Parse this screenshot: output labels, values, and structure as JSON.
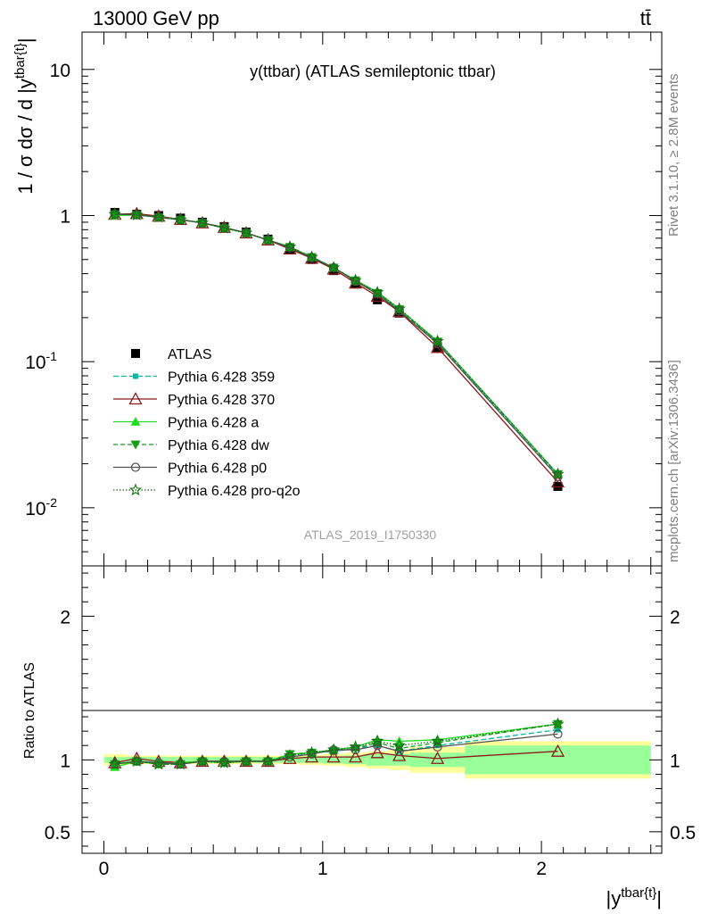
{
  "header": {
    "energy_label": "13000 GeV pp",
    "process_label": "tt̄"
  },
  "side_labels": {
    "rivet": "Rivet 3.1.10, ≥ 2.8M events",
    "mcplots": "mcplots.cern.ch [arXiv:1306.3436]"
  },
  "colors": {
    "ATLAS": "#000000",
    "Pythia 6.428 359": "#00b7a0",
    "Pythia 6.428 370": "#8b1a1a",
    "Pythia 6.428 a": "#22dd22",
    "Pythia 6.428 dw": "#10a010",
    "Pythia 6.428 p0": "#505050",
    "Pythia 6.428 pro-q2o": "#107010",
    "band_inner": "#99ff99",
    "band_outer": "#ffff99"
  },
  "chart_data": [
    {
      "type": "scatter",
      "panel": "main",
      "title": "y(ttbar) (ATLAS semileptonic ttbar)",
      "ylabel": "1 / σ dσ / d |y^{tbar{t}}|",
      "ylog": true,
      "ylim": [
        0.004,
        18
      ],
      "xlim": [
        -0.1,
        2.55
      ],
      "analysis_label": "ATLAS_2019_I1750330",
      "ytick_labels": [
        "10^{-2}",
        "10^{-1}",
        "1",
        "10"
      ],
      "legend_position": "middle-left",
      "x": [
        0.05,
        0.15,
        0.25,
        0.35,
        0.45,
        0.55,
        0.65,
        0.75,
        0.85,
        0.95,
        1.05,
        1.15,
        1.25,
        1.35,
        1.525,
        2.075
      ],
      "series": [
        {
          "name": "ATLAS",
          "marker": "square",
          "values": [
            1.05,
            1.02,
            1.0,
            0.96,
            0.9,
            0.84,
            0.77,
            0.69,
            0.59,
            0.5,
            0.42,
            0.34,
            0.265,
            0.215,
            0.125,
            0.014
          ]
        },
        {
          "name": "Pythia 6.428 359",
          "marker": "small-square",
          "dash": "6,3",
          "values": [
            1.03,
            1.01,
            0.975,
            0.94,
            0.89,
            0.83,
            0.76,
            0.68,
            0.61,
            0.52,
            0.44,
            0.36,
            0.29,
            0.225,
            0.135,
            0.0165
          ]
        },
        {
          "name": "Pythia 6.428 370",
          "marker": "open-triangle",
          "dash": "",
          "values": [
            1.02,
            1.03,
            0.99,
            0.94,
            0.89,
            0.83,
            0.76,
            0.68,
            0.59,
            0.51,
            0.43,
            0.345,
            0.28,
            0.22,
            0.125,
            0.015
          ]
        },
        {
          "name": "Pythia 6.428 a",
          "marker": "triangle",
          "dash": "",
          "values": [
            1.0,
            1.01,
            0.975,
            0.94,
            0.89,
            0.82,
            0.76,
            0.68,
            0.61,
            0.52,
            0.44,
            0.36,
            0.3,
            0.23,
            0.138,
            0.017
          ]
        },
        {
          "name": "Pythia 6.428 dw",
          "marker": "down-triangle",
          "dash": "5,3",
          "values": [
            1.02,
            1.01,
            0.97,
            0.935,
            0.89,
            0.82,
            0.76,
            0.68,
            0.61,
            0.52,
            0.44,
            0.36,
            0.295,
            0.228,
            0.137,
            0.017
          ]
        },
        {
          "name": "Pythia 6.428 p0",
          "marker": "open-circle",
          "dash": "",
          "values": [
            1.02,
            1.01,
            0.975,
            0.935,
            0.89,
            0.83,
            0.76,
            0.68,
            0.6,
            0.515,
            0.44,
            0.355,
            0.29,
            0.222,
            0.133,
            0.0163
          ]
        },
        {
          "name": "Pythia 6.428 pro-q2o",
          "marker": "open-star",
          "dash": "1.5,2",
          "values": [
            1.02,
            1.01,
            0.975,
            0.935,
            0.89,
            0.82,
            0.76,
            0.68,
            0.61,
            0.52,
            0.44,
            0.36,
            0.298,
            0.23,
            0.138,
            0.017
          ]
        }
      ]
    },
    {
      "type": "scatter",
      "panel": "ratio",
      "ylabel": "Ratio to ATLAS",
      "xlabel": "|y^{tbar{t}}|",
      "ylim": [
        0.35,
        2.35
      ],
      "xlim": [
        -0.1,
        2.55
      ],
      "ytick_labels": [
        "0.5",
        "1",
        "2"
      ],
      "xtick_labels": [
        "0",
        "1",
        "2"
      ],
      "bins": [
        [
          0,
          0.1
        ],
        [
          0.1,
          0.2
        ],
        [
          0.2,
          0.3
        ],
        [
          0.3,
          0.4
        ],
        [
          0.4,
          0.5
        ],
        [
          0.5,
          0.6
        ],
        [
          0.6,
          0.7
        ],
        [
          0.7,
          0.8
        ],
        [
          0.8,
          0.9
        ],
        [
          0.9,
          1.0
        ],
        [
          1.0,
          1.1
        ],
        [
          1.1,
          1.2
        ],
        [
          1.2,
          1.3
        ],
        [
          1.3,
          1.4
        ],
        [
          1.4,
          1.65
        ],
        [
          1.65,
          2.5
        ]
      ],
      "band_stat_halfwidth": [
        0.02,
        0.02,
        0.02,
        0.02,
        0.02,
        0.02,
        0.02,
        0.02,
        0.02,
        0.02,
        0.025,
        0.03,
        0.04,
        0.04,
        0.05,
        0.1
      ],
      "band_total_halfwidth": [
        0.04,
        0.03,
        0.03,
        0.03,
        0.03,
        0.03,
        0.03,
        0.03,
        0.03,
        0.035,
        0.04,
        0.05,
        0.06,
        0.07,
        0.09,
        0.13
      ],
      "x": [
        0.05,
        0.15,
        0.25,
        0.35,
        0.45,
        0.55,
        0.65,
        0.75,
        0.85,
        0.95,
        1.05,
        1.15,
        1.25,
        1.35,
        1.525,
        2.075
      ],
      "series": [
        {
          "name": "Pythia 6.428 359",
          "marker": "small-square",
          "dash": "6,3",
          "values": [
            0.97,
            0.99,
            0.98,
            0.98,
            0.99,
            0.99,
            0.99,
            0.99,
            1.03,
            1.05,
            1.06,
            1.08,
            1.1,
            1.06,
            1.1,
            1.21
          ]
        },
        {
          "name": "Pythia 6.428 370",
          "marker": "open-triangle",
          "dash": "",
          "values": [
            0.98,
            1.01,
            0.99,
            0.98,
            0.99,
            0.99,
            0.99,
            0.99,
            1.01,
            1.02,
            1.02,
            1.02,
            1.05,
            1.03,
            1.01,
            1.06
          ]
        },
        {
          "name": "Pythia 6.428 a",
          "marker": "triangle",
          "dash": "",
          "values": [
            0.95,
            0.99,
            0.97,
            0.98,
            0.99,
            0.98,
            0.99,
            0.99,
            1.04,
            1.05,
            1.07,
            1.09,
            1.14,
            1.13,
            1.14,
            1.25
          ]
        },
        {
          "name": "Pythia 6.428 dw",
          "marker": "down-triangle",
          "dash": "5,3",
          "values": [
            0.97,
            0.99,
            0.97,
            0.97,
            0.99,
            0.98,
            0.99,
            0.99,
            1.04,
            1.05,
            1.06,
            1.08,
            1.12,
            1.08,
            1.12,
            1.25
          ]
        },
        {
          "name": "Pythia 6.428 p0",
          "marker": "open-circle",
          "dash": "",
          "values": [
            0.97,
            0.99,
            0.98,
            0.97,
            0.99,
            0.99,
            0.99,
            0.99,
            1.02,
            1.04,
            1.07,
            1.07,
            1.1,
            1.06,
            1.09,
            1.18
          ]
        },
        {
          "name": "Pythia 6.428 pro-q2o",
          "marker": "open-star",
          "dash": "1.5,2",
          "values": [
            0.97,
            0.99,
            0.97,
            0.97,
            0.99,
            0.98,
            0.99,
            0.99,
            1.03,
            1.05,
            1.07,
            1.09,
            1.13,
            1.1,
            1.13,
            1.25
          ]
        }
      ]
    }
  ]
}
